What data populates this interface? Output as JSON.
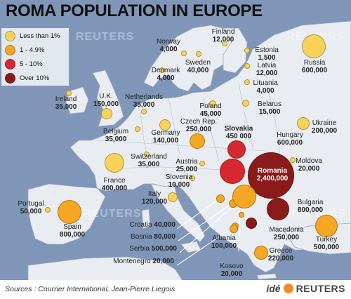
{
  "title": "ROMA POPULATION IN EUROPE",
  "legend": [
    {
      "label": "Less than 1%",
      "color": "#f7d25a"
    },
    {
      "label": "1 - 4.9%",
      "color": "#f5a623"
    },
    {
      "label": "5 - 10%",
      "color": "#d7282f"
    },
    {
      "label": "Over 10%",
      "color": "#8b1a1a"
    }
  ],
  "countries": [
    {
      "name": "Finland",
      "value": "12,000"
    },
    {
      "name": "Norway",
      "value": "4,000"
    },
    {
      "name": "Sweden",
      "value": "40,000"
    },
    {
      "name": "Estonia",
      "value": "1,500"
    },
    {
      "name": "Latvia",
      "value": "12,000"
    },
    {
      "name": "Lituania",
      "value": "4,000"
    },
    {
      "name": "Russia",
      "value": "600,000"
    },
    {
      "name": "Denmark",
      "value": "4,000"
    },
    {
      "name": "Ireland",
      "value": "35,000"
    },
    {
      "name": "U.K.",
      "value": "150,000"
    },
    {
      "name": "Netherlands",
      "value": "35,000"
    },
    {
      "name": "Poland",
      "value": "45,000"
    },
    {
      "name": "Belarus",
      "value": "15,000"
    },
    {
      "name": "Ukraine",
      "value": "200,000"
    },
    {
      "name": "Belgium",
      "value": "35,000"
    },
    {
      "name": "Germany",
      "value": "140,000"
    },
    {
      "name": "Czech Rep.",
      "value": "250,000"
    },
    {
      "name": "Slovakia",
      "value": "450 000"
    },
    {
      "name": "Hungary",
      "value": "600,000"
    },
    {
      "name": "Moldova",
      "value": "20,000"
    },
    {
      "name": "Switzerland",
      "value": "35,000"
    },
    {
      "name": "Austria",
      "value": "25,000"
    },
    {
      "name": "Romania",
      "value": "2,400,000"
    },
    {
      "name": "France",
      "value": "400,000"
    },
    {
      "name": "Slovenia",
      "value": "10,000"
    },
    {
      "name": "Portugal",
      "value": "50,000"
    },
    {
      "name": "Italy",
      "value": "120,000"
    },
    {
      "name": "Bulgaria",
      "value": "800,000"
    },
    {
      "name": "Spain",
      "value": "800,000"
    },
    {
      "name": "Croatia",
      "value": "40,000"
    },
    {
      "name": "Bosnia",
      "value": "80,000"
    },
    {
      "name": "Serbia",
      "value": "500,000"
    },
    {
      "name": "Montenegro",
      "value": "20,000"
    },
    {
      "name": "Albania",
      "value": "100,000"
    },
    {
      "name": "Macedonia",
      "value": "250,000"
    },
    {
      "name": "Turkey",
      "value": "500,000"
    },
    {
      "name": "Greece",
      "value": "220,000"
    },
    {
      "name": "Kosovo",
      "value": "20,000"
    }
  ],
  "watermark": "REUTERS",
  "sources": "Sources : Courrier International, Jean-Pierre Liegois",
  "brand": {
    "ide": "idé",
    "reuters": "REUTERS"
  }
}
